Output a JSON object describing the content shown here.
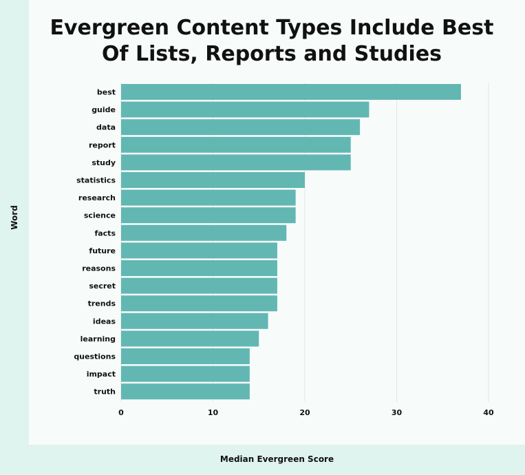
{
  "chart_data": {
    "type": "bar",
    "orientation": "horizontal",
    "title": "Evergreen Content Types Include Best Of Lists, Reports and Studies",
    "xlabel": "Median Evergreen Score",
    "ylabel": "Word",
    "categories": [
      "best",
      "guide",
      "data",
      "report",
      "study",
      "statistics",
      "research",
      "science",
      "facts",
      "future",
      "reasons",
      "secret",
      "trends",
      "ideas",
      "learning",
      "questions",
      "impact",
      "truth"
    ],
    "values": [
      37,
      27,
      26,
      25,
      25,
      20,
      19,
      19,
      18,
      17,
      17,
      17,
      17,
      16,
      15,
      14,
      14,
      14
    ],
    "xlim": [
      0,
      40
    ],
    "xticks": [
      0,
      10,
      20,
      30,
      40
    ],
    "grid": true
  },
  "colors": {
    "bar": "#62b7b3",
    "grid": "#e2e7e6",
    "background": "#f7fcfb",
    "accent_strip": "#dff3ef"
  }
}
